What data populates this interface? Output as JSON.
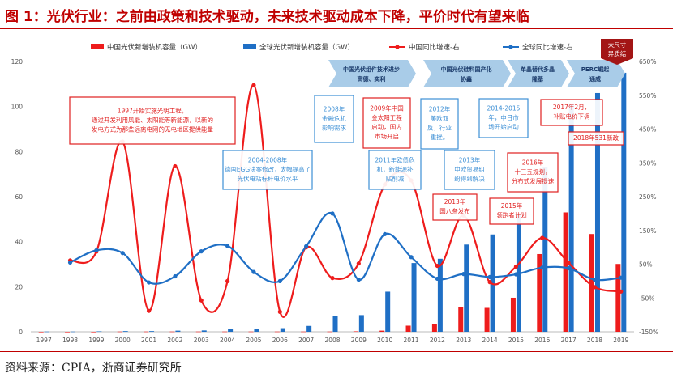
{
  "title": "图 1：光伏行业：之前由政策和技术驱动，未来技术驱动成本下降，平价时代有望来临",
  "source": "资料来源：CPIA，浙商证券研究所",
  "colors": {
    "china": "#ee1c1c",
    "global": "#1f6fc5",
    "title": "#c00000",
    "blue_box": "#3c8fd5",
    "red_box": "#e02020",
    "arrow": "#a9cce8"
  },
  "chart_data": {
    "type": "bar",
    "categories": [
      "1997",
      "1998",
      "1999",
      "2000",
      "2001",
      "2002",
      "2003",
      "2004",
      "2005",
      "2006",
      "2007",
      "2008",
      "2009",
      "2010",
      "2011",
      "2012",
      "2013",
      "2014",
      "2015",
      "2016",
      "2017",
      "2018",
      "2019"
    ],
    "ylim": [
      0,
      120
    ],
    "y2lim": [
      -150,
      650
    ],
    "yticks": [
      "0",
      "20",
      "40",
      "60",
      "80",
      "100",
      "120"
    ],
    "y2ticks": [
      "-150%",
      "-50%",
      "50%",
      "150%",
      "250%",
      "350%",
      "450%",
      "550%",
      "650%"
    ],
    "legend": [
      "中国光伏新增装机容量（GW）",
      "全球光伏新增装机容量（GW）",
      "中国同比增速-右",
      "全球同比增速-右"
    ],
    "series": [
      {
        "name": "中国光伏新增装机容量（GW）",
        "type": "bar",
        "axis": "left",
        "values": [
          0.0,
          0.0,
          0.0,
          0.1,
          0.1,
          0.1,
          0.1,
          0.1,
          0.1,
          0.1,
          0.1,
          0.1,
          0.2,
          0.5,
          2.7,
          3.5,
          10.9,
          10.6,
          15.1,
          34.5,
          53.0,
          43.4,
          30.1
        ]
      },
      {
        "name": "全球光伏新增装机容量（GW）",
        "type": "bar",
        "axis": "left",
        "values": [
          0.1,
          0.1,
          0.2,
          0.3,
          0.3,
          0.5,
          0.6,
          1.1,
          1.4,
          1.6,
          2.6,
          6.9,
          7.4,
          17.8,
          30.5,
          32.4,
          38.7,
          43.2,
          52.0,
          73.0,
          101.0,
          106.0,
          115.0
        ]
      },
      {
        "name": "中国同比增速-右",
        "type": "line",
        "axis": "right",
        "values": [
          null,
          61,
          87,
          413,
          -88,
          340,
          -57,
          0,
          580,
          -91,
          100,
          9,
          52,
          286,
          298,
          45,
          194,
          -3,
          43,
          128,
          54,
          -18,
          -31
        ]
      },
      {
        "name": "全球同比增速-右",
        "type": "line",
        "axis": "right",
        "values": [
          null,
          55,
          91,
          83,
          -4,
          14,
          88,
          104,
          27,
          0,
          103,
          200,
          4,
          139,
          71,
          7,
          21,
          12,
          20,
          40,
          38,
          4,
          10
        ]
      }
    ],
    "annotations": [
      {
        "id": "a1997",
        "color": "red",
        "text": [
          "1997开始实施光明工程，",
          "通过开发利用风能、太阳能等新能源，以新的",
          "发电方式为那些远离电网的无电地区提供能量"
        ]
      },
      {
        "id": "a2004",
        "color": "blue",
        "text": [
          "2004-2008年",
          "德国EGG法案修改，太幅提高了",
          "光伏电站标杆电价水平"
        ]
      },
      {
        "id": "a2008",
        "color": "blue",
        "text": [
          "2008年",
          "金融危机",
          "影响需求"
        ]
      },
      {
        "id": "a2009",
        "color": "red",
        "text": [
          "2009年中国",
          "金太阳工程",
          "启动，国内",
          "市场开启"
        ]
      },
      {
        "id": "a2011",
        "color": "blue",
        "text": [
          "2011年欧债危",
          "机，新能源补",
          "贴削减"
        ]
      },
      {
        "id": "a2012",
        "color": "blue",
        "text": [
          "2012年",
          "美欧双",
          "反，行业",
          "重挫。"
        ]
      },
      {
        "id": "a2013b",
        "color": "blue",
        "text": [
          "2013年",
          "中欧贸易纠",
          "纷得到解决"
        ]
      },
      {
        "id": "a2013r",
        "color": "red",
        "text": [
          "2013年",
          "国八条发布"
        ]
      },
      {
        "id": "a2014",
        "color": "blue",
        "text": [
          "2014-2015",
          "年，中日市",
          "场开始启动"
        ]
      },
      {
        "id": "a2015",
        "color": "red",
        "text": [
          "2015年",
          "领跑者计划"
        ]
      },
      {
        "id": "a2016",
        "color": "red",
        "text": [
          "2016年",
          "十三五规划，",
          "分布式发展提速"
        ]
      },
      {
        "id": "a2017",
        "color": "red",
        "text": [
          "2017年2月，",
          "补贴电价下调"
        ]
      },
      {
        "id": "a2018",
        "color": "red",
        "text": [
          "2018年531新政"
        ]
      }
    ],
    "arrows": [
      {
        "id": "arr1",
        "text": [
          "中国光伏组件技术进步",
          "高德、奕利"
        ]
      },
      {
        "id": "arr2",
        "text": [
          "中国光伏硅料国产化",
          "协鑫"
        ]
      },
      {
        "id": "arr3",
        "text": [
          "单晶替代多晶",
          "隆基"
        ]
      },
      {
        "id": "arr4",
        "text": [
          "PERC崛起",
          "通威"
        ]
      }
    ],
    "tag": {
      "text": [
        "大尺寸",
        "异质结"
      ]
    }
  }
}
